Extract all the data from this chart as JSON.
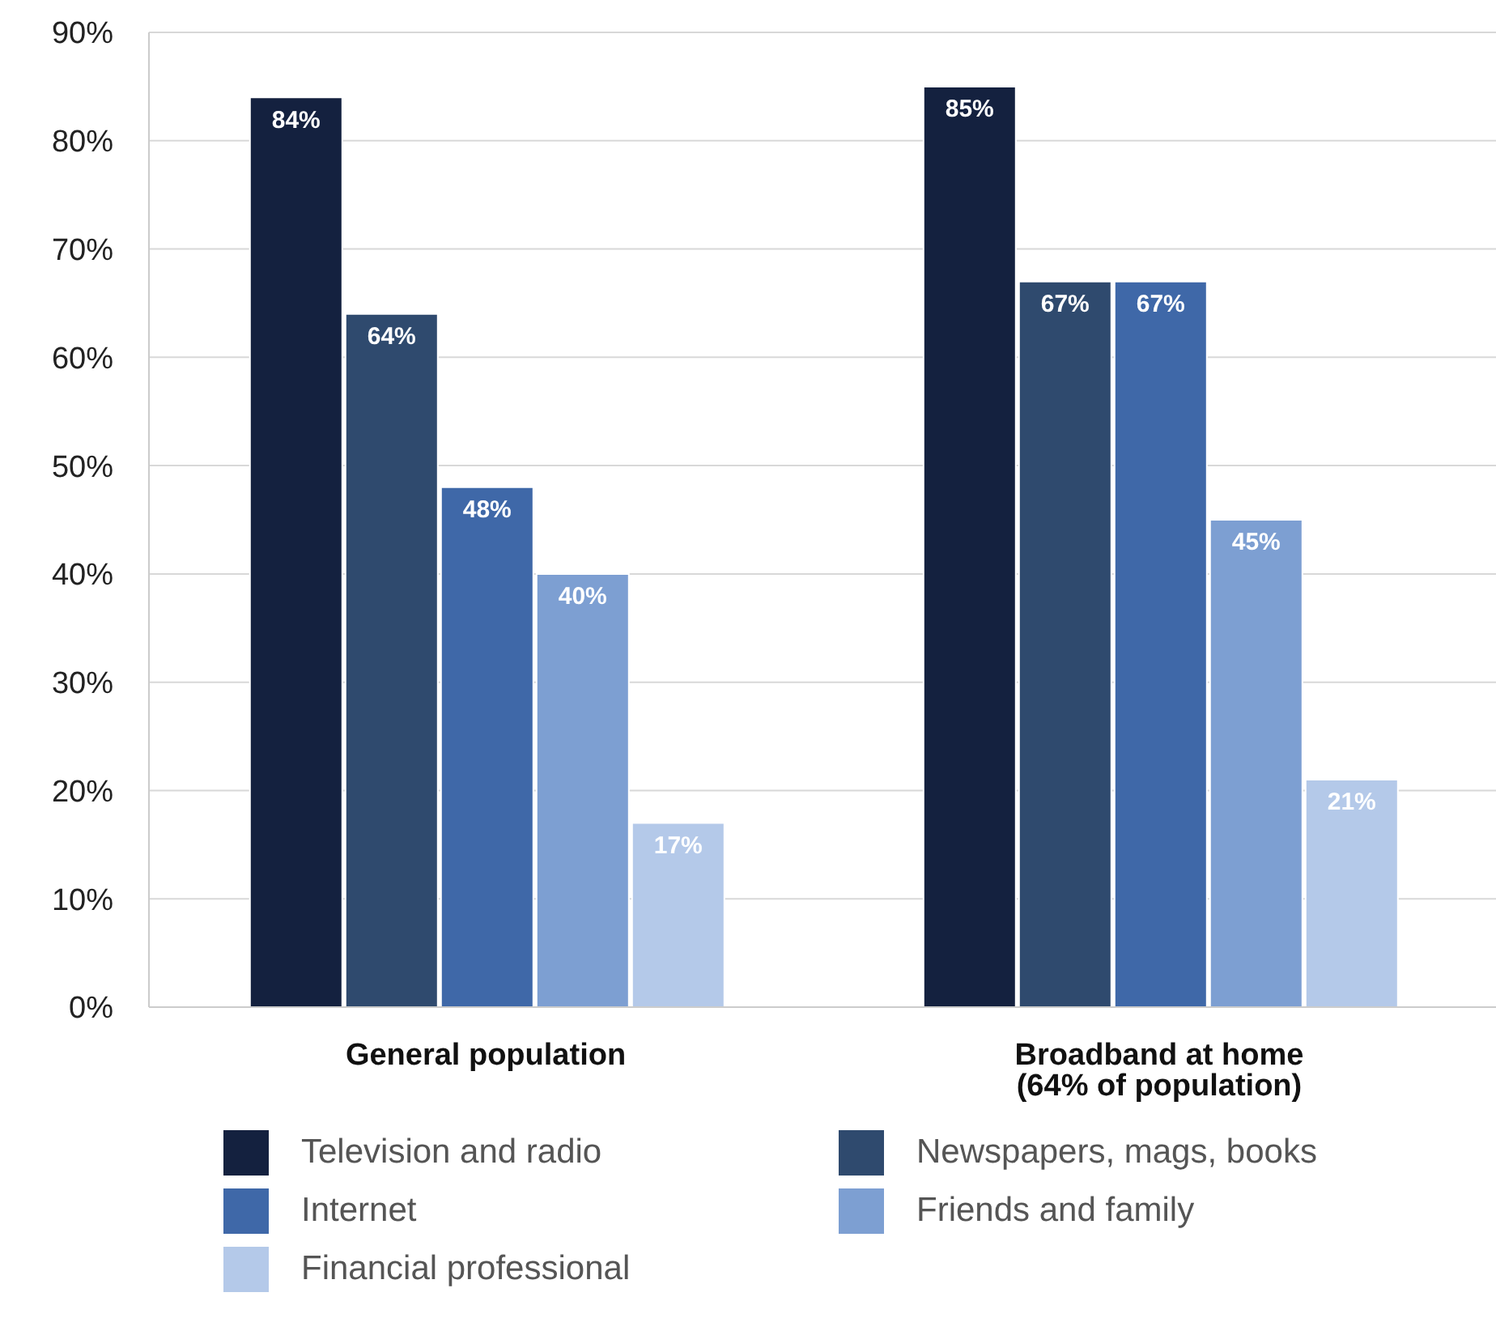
{
  "chart_data": {
    "type": "bar",
    "categories": [
      "General population",
      "Broadband at home (64% of population)"
    ],
    "series": [
      {
        "name": "Television and radio",
        "color": "#14213f",
        "values": [
          84,
          85
        ],
        "value_labels": [
          "84%",
          "85%"
        ]
      },
      {
        "name": "Newspapers, mags, books",
        "color": "#2f4a6e",
        "values": [
          64,
          67
        ],
        "value_labels": [
          "64%",
          "67%"
        ]
      },
      {
        "name": "Internet",
        "color": "#3f68a8",
        "values": [
          48,
          67
        ],
        "value_labels": [
          "48%",
          "67%"
        ]
      },
      {
        "name": "Friends and family",
        "color": "#7d9fd2",
        "values": [
          40,
          45
        ],
        "value_labels": [
          "40%",
          "45%"
        ]
      },
      {
        "name": "Financial professional",
        "color": "#b4c9e9",
        "values": [
          17,
          21
        ],
        "value_labels": [
          "17%",
          "21%"
        ]
      }
    ],
    "ylim": [
      0,
      90
    ],
    "yticks": [
      {
        "value": 0,
        "label": "0%"
      },
      {
        "value": 10,
        "label": "10%"
      },
      {
        "value": 20,
        "label": "20%"
      },
      {
        "value": 30,
        "label": "30%"
      },
      {
        "value": 40,
        "label": "40%"
      },
      {
        "value": 50,
        "label": "50%"
      },
      {
        "value": 60,
        "label": "60%"
      },
      {
        "value": 70,
        "label": "70%"
      },
      {
        "value": 80,
        "label": "80%"
      },
      {
        "value": 90,
        "label": "90%"
      }
    ],
    "grid": "y",
    "legend": "bottom"
  }
}
